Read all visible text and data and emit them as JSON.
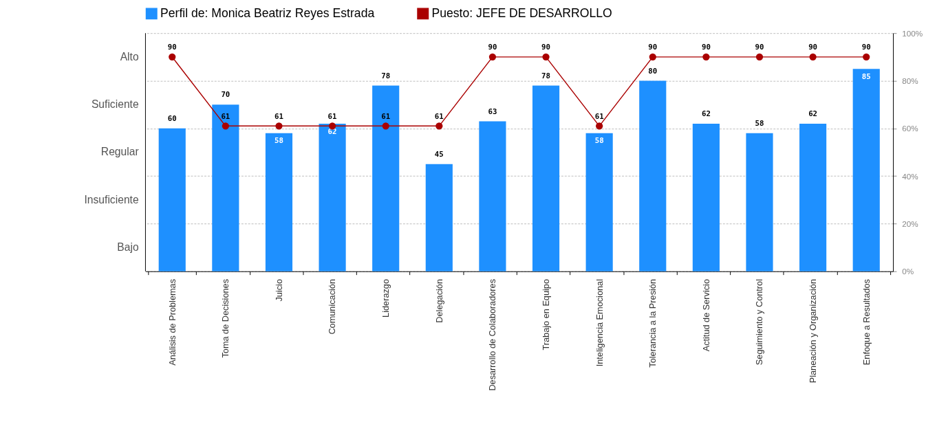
{
  "chart_data": {
    "type": "bar",
    "categories": [
      "Análisis de Problemas",
      "Toma de Decisiones",
      "Juicio",
      "Comunicación",
      "Liderazgo",
      "Delegación",
      "Desarrollo de Colaboradores",
      "Trabajo en Equipo",
      "Inteligencia Emocional",
      "Tolerancia a la Presión",
      "Actitud de Servicio",
      "Seguimiento y Control",
      "Planeación y Organización",
      "Enfoque a Resultados"
    ],
    "series": [
      {
        "name": "Perfil de: Monica Beatriz Reyes Estrada",
        "type": "bar",
        "color": "#1e90ff",
        "values": [
          60,
          70,
          58,
          62,
          78,
          45,
          63,
          78,
          58,
          80,
          62,
          58,
          62,
          85
        ]
      },
      {
        "name": "Puesto: JEFE DE DESARROLLO",
        "type": "line",
        "color": "#aa0000",
        "marker": "circle",
        "line_style": "solid",
        "values": [
          90,
          61,
          61,
          61,
          61,
          61,
          90,
          90,
          61,
          90,
          90,
          90,
          90,
          90
        ]
      }
    ],
    "ylim": [
      0,
      100
    ],
    "yticks": [
      {
        "value": 0,
        "label": "0%"
      },
      {
        "value": 20,
        "label": "20%"
      },
      {
        "value": 40,
        "label": "40%"
      },
      {
        "value": 60,
        "label": "60%"
      },
      {
        "value": 80,
        "label": "80%"
      },
      {
        "value": 100,
        "label": "100%"
      }
    ],
    "annotations": [
      "Alto",
      "Suficiente",
      "Regular",
      "Insuficiente",
      "Bajo"
    ],
    "grid": "y",
    "legend": "top",
    "data_labels": true
  }
}
